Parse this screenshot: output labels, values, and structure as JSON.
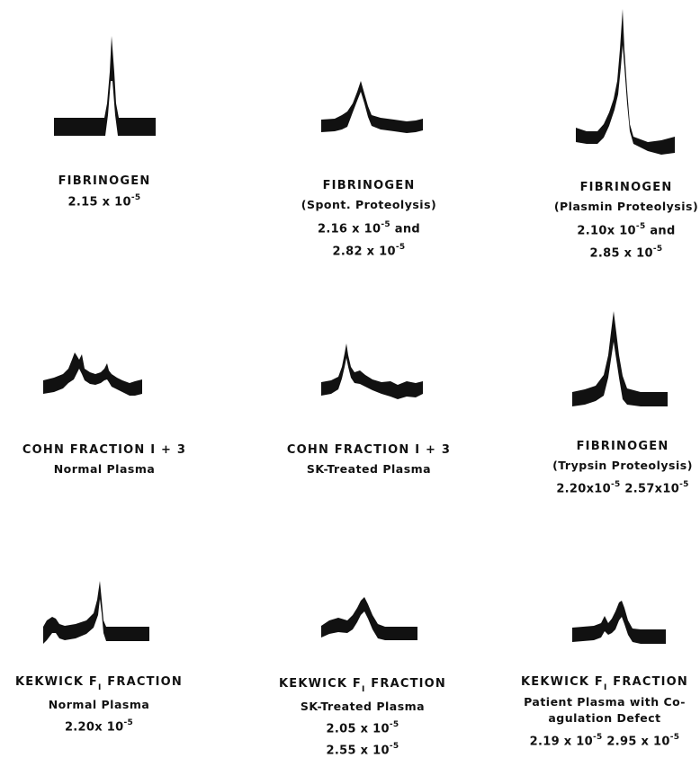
{
  "panels": [
    {
      "id": "fibrinogen",
      "lines": [
        "FIBRINOGEN",
        "2.15 x 10^{-5}"
      ]
    },
    {
      "id": "fibrinogen-spont",
      "lines": [
        "FIBRINOGEN",
        "(Spont. Proteolysis)",
        "2.16 x 10^{-5} and",
        "2.82 x 10^{-5}"
      ]
    },
    {
      "id": "fibrinogen-plasmin",
      "lines": [
        "FIBRINOGEN",
        "(Plasmin Proteolysis)",
        "2.10x 10^{-5} and",
        "2.85 x 10^{-5}"
      ]
    },
    {
      "id": "cohn-normal",
      "lines": [
        "COHN FRACTION I + 3",
        "Normal Plasma"
      ]
    },
    {
      "id": "cohn-sk",
      "lines": [
        "COHN FRACTION I + 3",
        "SK-Treated Plasma"
      ]
    },
    {
      "id": "fibrinogen-trypsin",
      "lines": [
        "FIBRINOGEN",
        "(Trypsin Proteolysis)",
        "2.20x10^{-5} 2.57x10^{-5}"
      ]
    },
    {
      "id": "kekwick-normal",
      "lines": [
        "KEKWICK F_{I} FRACTION",
        "Normal Plasma",
        "2.20x 10^{-5}"
      ]
    },
    {
      "id": "kekwick-sk",
      "lines": [
        "KEKWICK F_{I} FRACTION",
        "SK-Treated Plasma",
        "2.05 x 10^{-5}",
        "2.55 x 10^{-5}"
      ]
    },
    {
      "id": "kekwick-patient",
      "lines": [
        "KEKWICK F_{I} FRACTION",
        "Patient Plasma with Co-",
        "agulation Defect",
        "2.19 x 10^{-5} 2.95 x 10^{-5}"
      ]
    }
  ]
}
